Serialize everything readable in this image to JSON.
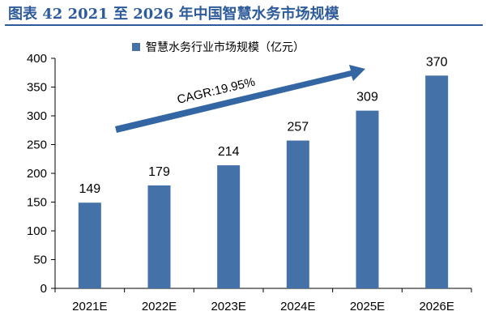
{
  "figure": {
    "title": "图表 42 2021 至 2026 年中国智慧水务市场规模"
  },
  "colors": {
    "accent": "#2E5B9A",
    "bar": "#4472A8",
    "arrow": "#3466A4"
  },
  "chart_data": {
    "type": "bar",
    "categories": [
      "2021E",
      "2022E",
      "2023E",
      "2024E",
      "2025E",
      "2026E"
    ],
    "series": [
      {
        "name": "智慧水务行业市场规模（亿元）",
        "values": [
          149,
          179,
          214,
          257,
          309,
          370
        ]
      }
    ],
    "data_labels": [
      "149",
      "179",
      "214",
      "257",
      "309",
      "370"
    ],
    "ylim": [
      0,
      400
    ],
    "yticks": [
      0,
      50,
      100,
      150,
      200,
      250,
      300,
      350,
      400
    ],
    "ytick_labels": [
      "0",
      "50",
      "100",
      "150",
      "200",
      "250",
      "300",
      "350",
      "400"
    ],
    "grid": false,
    "legend_placement": "top-center",
    "annotation": "CAGR:19.95%"
  }
}
